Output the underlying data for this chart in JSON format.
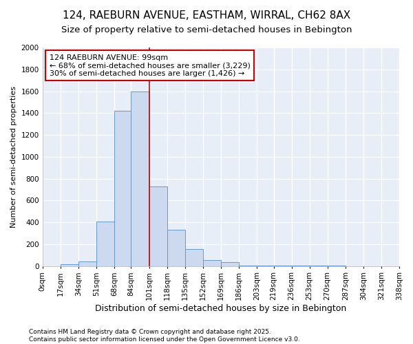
{
  "title_line1": "124, RAEBURN AVENUE, EASTHAM, WIRRAL, CH62 8AX",
  "title_line2": "Size of property relative to semi-detached houses in Bebington",
  "xlabel": "Distribution of semi-detached houses by size in Bebington",
  "ylabel": "Number of semi-detached properties",
  "bins": [
    0,
    17,
    34,
    51,
    68,
    84,
    101,
    118,
    135,
    152,
    169,
    186,
    203,
    219,
    236,
    253,
    270,
    287,
    304,
    321,
    338
  ],
  "bin_labels": [
    "0sqm",
    "17sqm",
    "34sqm",
    "51sqm",
    "68sqm",
    "84sqm",
    "101sqm",
    "118sqm",
    "135sqm",
    "152sqm",
    "169sqm",
    "186sqm",
    "203sqm",
    "219sqm",
    "236sqm",
    "253sqm",
    "270sqm",
    "287sqm",
    "304sqm",
    "321sqm",
    "338sqm"
  ],
  "values": [
    0,
    20,
    40,
    410,
    1420,
    1600,
    730,
    330,
    155,
    55,
    35,
    5,
    5,
    3,
    2,
    2,
    2,
    1,
    1,
    0
  ],
  "bar_color": "#ccd9ee",
  "bar_edge_color": "#6699cc",
  "background_color": "#ffffff",
  "plot_bg_color": "#e8eef8",
  "grid_color": "#ffffff",
  "property_line_x": 101,
  "annotation_text_line1": "124 RAEBURN AVENUE: 99sqm",
  "annotation_text_line2": "← 68% of semi-detached houses are smaller (3,229)",
  "annotation_text_line3": "30% of semi-detached houses are larger (1,426) →",
  "annotation_box_color": "#ffffff",
  "annotation_border_color": "#cc0000",
  "vline_color": "#cc0000",
  "ylim": [
    0,
    2000
  ],
  "yticks": [
    0,
    200,
    400,
    600,
    800,
    1000,
    1200,
    1400,
    1600,
    1800,
    2000
  ],
  "footnote_line1": "Contains HM Land Registry data © Crown copyright and database right 2025.",
  "footnote_line2": "Contains public sector information licensed under the Open Government Licence v3.0.",
  "title_fontsize": 11,
  "subtitle_fontsize": 9.5,
  "xlabel_fontsize": 9,
  "ylabel_fontsize": 8,
  "tick_fontsize": 7.5,
  "annotation_fontsize": 8,
  "footnote_fontsize": 6.5
}
